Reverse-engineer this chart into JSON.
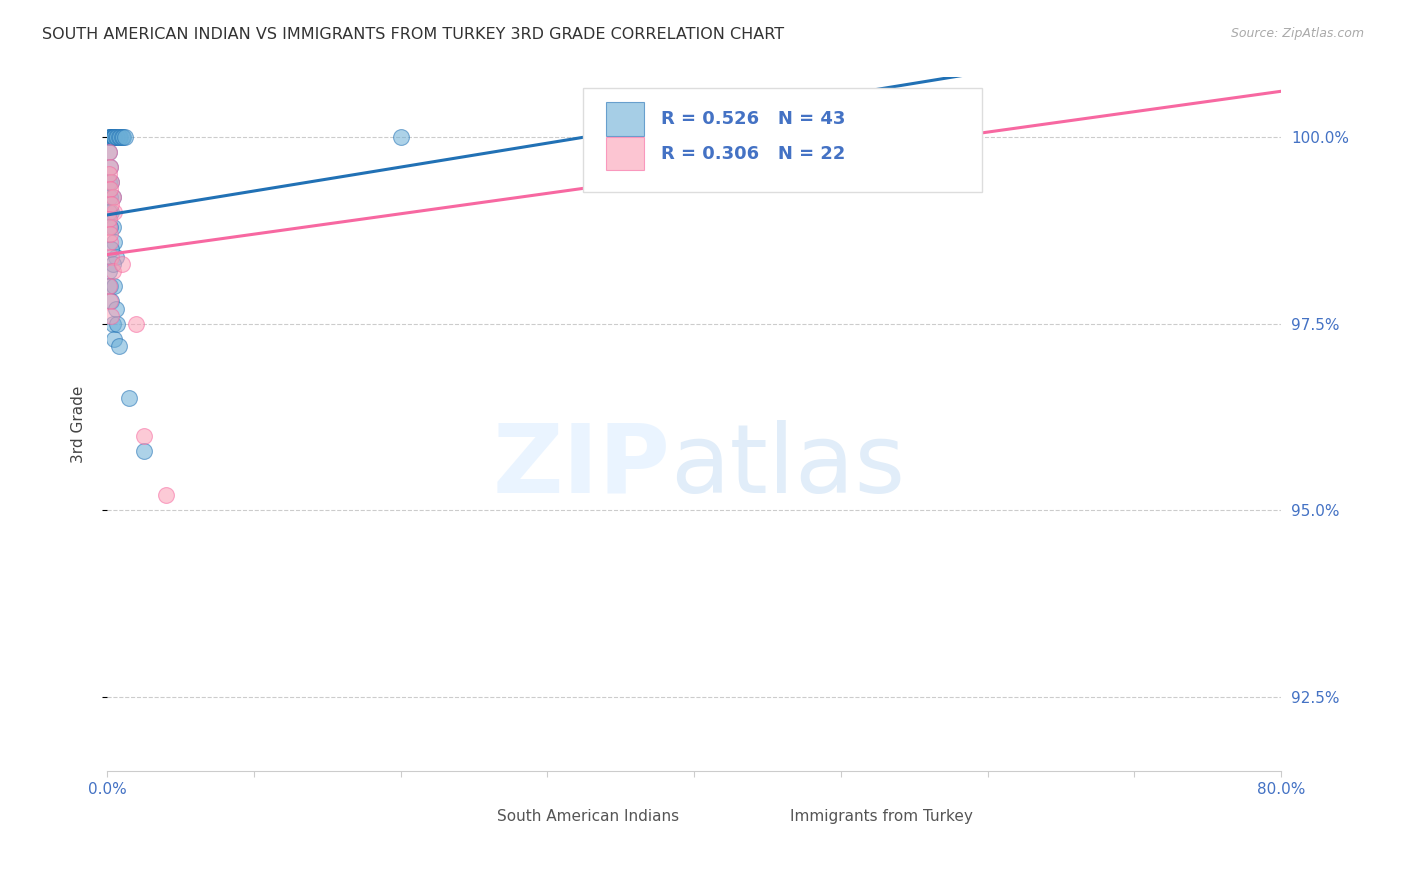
{
  "title": "SOUTH AMERICAN INDIAN VS IMMIGRANTS FROM TURKEY 3RD GRADE CORRELATION CHART",
  "source": "Source: ZipAtlas.com",
  "ylabel": "3rd Grade",
  "legend_blue_label": "R = 0.526   N = 43",
  "legend_pink_label": "R = 0.306   N = 22",
  "legend_bottom_blue": "South American Indians",
  "legend_bottom_pink": "Immigrants from Turkey",
  "blue_color": "#6baed6",
  "pink_color": "#fa9fb5",
  "line_blue_color": "#2171b5",
  "line_pink_color": "#f768a1",
  "blue_scatter_x": [
    0.001,
    0.002,
    0.002,
    0.003,
    0.003,
    0.004,
    0.004,
    0.005,
    0.005,
    0.006,
    0.007,
    0.008,
    0.009,
    0.01,
    0.011,
    0.012,
    0.001,
    0.002,
    0.003,
    0.004,
    0.005,
    0.006,
    0.001,
    0.002,
    0.003,
    0.004,
    0.005,
    0.015,
    0.025,
    0.001,
    0.002,
    0.003,
    0.004,
    0.001,
    0.002,
    0.003,
    0.004,
    0.005,
    0.006,
    0.007,
    0.008,
    0.35,
    0.2
  ],
  "blue_scatter_y": [
    100.0,
    100.0,
    100.0,
    100.0,
    100.0,
    100.0,
    100.0,
    100.0,
    100.0,
    100.0,
    100.0,
    100.0,
    100.0,
    100.0,
    100.0,
    100.0,
    99.4,
    99.2,
    99.0,
    98.8,
    98.6,
    98.4,
    98.2,
    98.0,
    97.8,
    97.5,
    97.3,
    96.5,
    95.8,
    99.8,
    99.6,
    99.4,
    99.2,
    99.0,
    98.8,
    98.5,
    98.3,
    98.0,
    97.7,
    97.5,
    97.2,
    100.1,
    100.0
  ],
  "pink_scatter_x": [
    0.001,
    0.002,
    0.003,
    0.004,
    0.005,
    0.001,
    0.002,
    0.003,
    0.004,
    0.001,
    0.002,
    0.003,
    0.01,
    0.02,
    0.001,
    0.002,
    0.003,
    0.001,
    0.002,
    0.025,
    0.04,
    0.5
  ],
  "pink_scatter_y": [
    99.8,
    99.6,
    99.4,
    99.2,
    99.0,
    98.8,
    98.6,
    98.4,
    98.2,
    98.0,
    97.8,
    97.6,
    98.3,
    97.5,
    99.5,
    99.3,
    99.1,
    98.9,
    98.7,
    96.0,
    95.2,
    100.2
  ],
  "xmin": 0.0,
  "xmax": 0.8,
  "ymin": 91.5,
  "ymax": 100.8,
  "yticks": [
    92.5,
    95.0,
    97.5,
    100.0
  ],
  "grid_color": "#cccccc",
  "background_color": "#ffffff",
  "title_color": "#333333",
  "axis_label_color": "#4472c4"
}
